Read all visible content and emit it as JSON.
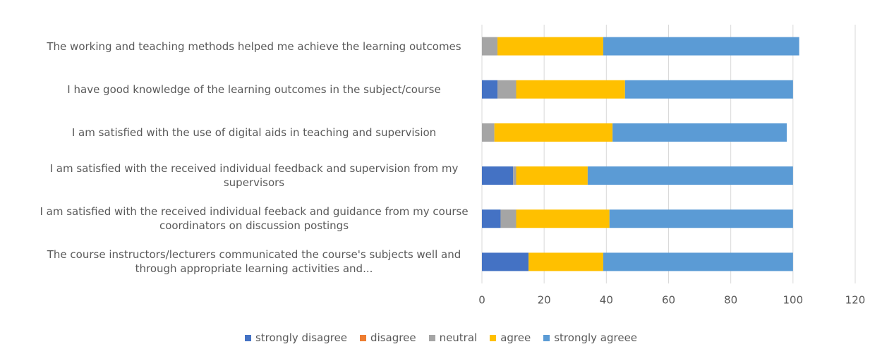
{
  "chart_data": {
    "type": "stacked_barh",
    "categories": [
      "The working and teaching methods helped me achieve the learning outcomes",
      "I have good knowledge of the learning outcomes in the subject/course",
      "I am satisfied with the use of digital aids in teaching and supervision",
      "I am satisfied with the received individual feedback and supervision from my supervisors",
      "I am satisfied with the received individual feeback and guidance from my course coordinators on discussion postings",
      "The course instructors/lecturers communicated the course's subjects well and through appropriate learning activities and..."
    ],
    "series": [
      {
        "name": "strongly disagree",
        "color": "#4472c4",
        "values": [
          0,
          5,
          0,
          10,
          6,
          15
        ]
      },
      {
        "name": "disagree",
        "color": "#ed7d31",
        "values": [
          0,
          0,
          0,
          0,
          0,
          0
        ]
      },
      {
        "name": "neutral",
        "color": "#a5a5a5",
        "values": [
          5,
          6,
          4,
          1,
          5,
          0
        ]
      },
      {
        "name": "agree",
        "color": "#ffc000",
        "values": [
          34,
          35,
          38,
          23,
          30,
          24
        ]
      },
      {
        "name": "strongly agreee",
        "color": "#5b9bd5",
        "values": [
          63,
          54,
          56,
          66,
          59,
          61
        ]
      }
    ],
    "xlim": [
      0,
      120
    ],
    "xticks": [
      0,
      20,
      40,
      60,
      80,
      100,
      120
    ],
    "grid": true,
    "legend": "bottom"
  }
}
